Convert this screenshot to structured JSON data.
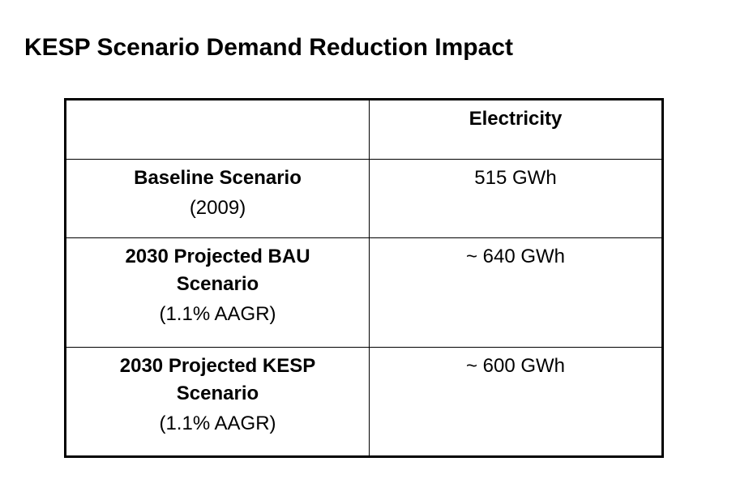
{
  "title": "KESP Scenario Demand Reduction Impact",
  "table": {
    "header": {
      "label": "",
      "value": "Electricity"
    },
    "rows": [
      {
        "label_lines": [
          "Baseline Scenario"
        ],
        "sub": "(2009)",
        "value": "515 GWh"
      },
      {
        "label_lines": [
          "2030 Projected BAU",
          "Scenario"
        ],
        "sub": "(1.1% AAGR)",
        "value": "~ 640 GWh"
      },
      {
        "label_lines": [
          "2030 Projected KESP",
          "Scenario"
        ],
        "sub": "(1.1% AAGR)",
        "value": "~ 600 GWh"
      }
    ]
  }
}
